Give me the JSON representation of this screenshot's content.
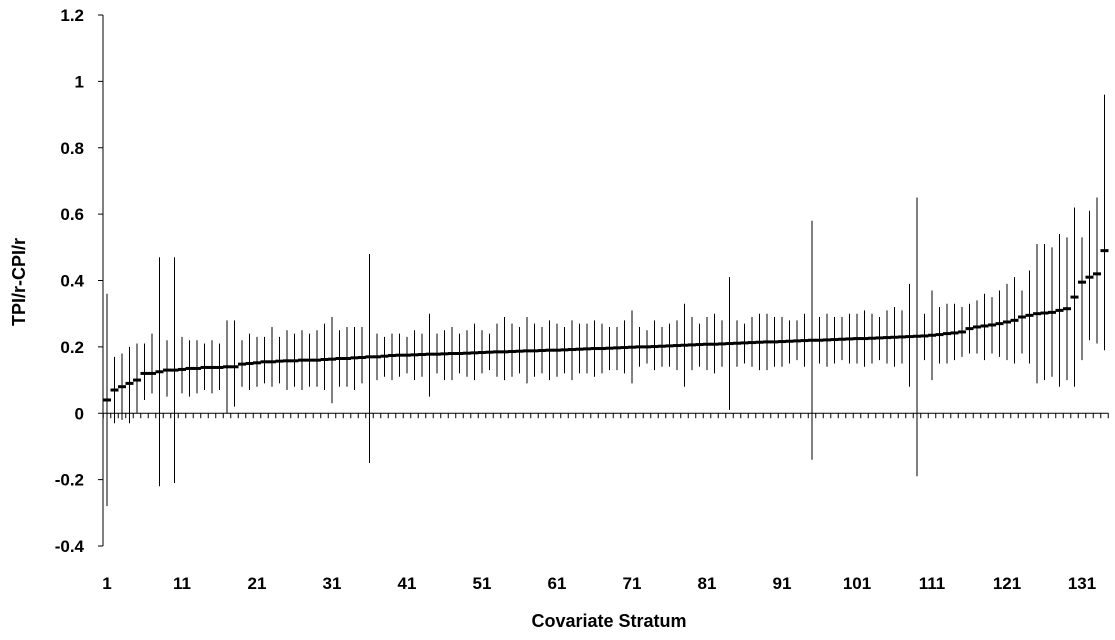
{
  "chart_data": {
    "type": "scatter",
    "title": "",
    "xlabel": "Covariate Stratum",
    "ylabel": "TPI/r-CPI/r",
    "ylim": [
      -0.4,
      1.2
    ],
    "yticks": [
      "-0.4",
      "-0.2",
      "0",
      "0.2",
      "0.4",
      "0.6",
      "0.8",
      "1",
      "1.2"
    ],
    "xlim": [
      1,
      134
    ],
    "xticks": [
      "1",
      "11",
      "21",
      "31",
      "41",
      "51",
      "61",
      "71",
      "81",
      "91",
      "101",
      "111",
      "121",
      "131"
    ],
    "grid": false,
    "legend": "none",
    "series": [
      {
        "estimate": [
          0.04,
          0.07,
          0.08,
          0.09,
          0.1,
          0.12,
          0.12,
          0.125,
          0.13,
          0.13,
          0.132,
          0.135,
          0.135,
          0.138,
          0.138,
          0.138,
          0.14,
          0.14,
          0.148,
          0.15,
          0.152,
          0.155,
          0.155,
          0.157,
          0.158,
          0.158,
          0.16,
          0.16,
          0.16,
          0.162,
          0.163,
          0.165,
          0.165,
          0.167,
          0.168,
          0.17,
          0.17,
          0.172,
          0.174,
          0.175,
          0.175,
          0.176,
          0.177,
          0.178,
          0.178,
          0.179,
          0.18,
          0.18,
          0.181,
          0.182,
          0.183,
          0.184,
          0.185,
          0.185,
          0.186,
          0.187,
          0.188,
          0.188,
          0.189,
          0.19,
          0.19,
          0.191,
          0.192,
          0.193,
          0.194,
          0.195,
          0.195,
          0.196,
          0.197,
          0.198,
          0.199,
          0.2,
          0.2,
          0.201,
          0.202,
          0.203,
          0.204,
          0.205,
          0.206,
          0.207,
          0.208,
          0.208,
          0.209,
          0.21,
          0.211,
          0.212,
          0.213,
          0.214,
          0.215,
          0.215,
          0.216,
          0.217,
          0.218,
          0.219,
          0.22,
          0.22,
          0.221,
          0.222,
          0.223,
          0.224,
          0.225,
          0.225,
          0.226,
          0.227,
          0.228,
          0.229,
          0.23,
          0.231,
          0.232,
          0.233,
          0.235,
          0.237,
          0.24,
          0.242,
          0.245,
          0.255,
          0.26,
          0.263,
          0.266,
          0.27,
          0.275,
          0.28,
          0.29,
          0.295,
          0.3,
          0.302,
          0.304,
          0.31,
          0.315,
          0.35,
          0.395,
          0.41,
          0.42,
          0.49
        ],
        "lower": [
          -0.28,
          -0.03,
          -0.02,
          -0.03,
          0.0,
          0.04,
          0.06,
          -0.22,
          0.05,
          -0.21,
          0.06,
          0.05,
          0.06,
          0.07,
          0.06,
          0.07,
          0.0,
          0.02,
          0.08,
          0.07,
          0.08,
          0.09,
          0.08,
          0.09,
          0.07,
          0.08,
          0.07,
          0.08,
          0.08,
          0.07,
          0.03,
          0.08,
          0.08,
          0.07,
          0.09,
          -0.15,
          0.1,
          0.11,
          0.1,
          0.11,
          0.12,
          0.1,
          0.11,
          0.05,
          0.12,
          0.1,
          0.1,
          0.12,
          0.11,
          0.1,
          0.12,
          0.13,
          0.11,
          0.1,
          0.11,
          0.12,
          0.09,
          0.11,
          0.12,
          0.1,
          0.11,
          0.12,
          0.1,
          0.12,
          0.12,
          0.11,
          0.12,
          0.13,
          0.13,
          0.12,
          0.09,
          0.14,
          0.15,
          0.13,
          0.14,
          0.14,
          0.13,
          0.08,
          0.13,
          0.14,
          0.13,
          0.12,
          0.14,
          0.01,
          0.14,
          0.15,
          0.14,
          0.13,
          0.13,
          0.14,
          0.14,
          0.15,
          0.16,
          0.14,
          -0.14,
          0.15,
          0.14,
          0.15,
          0.16,
          0.15,
          0.15,
          0.14,
          0.15,
          0.16,
          0.15,
          0.14,
          0.15,
          0.08,
          -0.19,
          0.16,
          0.1,
          0.15,
          0.15,
          0.16,
          0.17,
          0.18,
          0.18,
          0.16,
          0.18,
          0.17,
          0.16,
          0.15,
          0.18,
          0.15,
          0.09,
          0.1,
          0.11,
          0.08,
          0.1,
          0.08,
          0.16,
          0.22,
          0.21,
          0.19
        ],
        "upper": [
          0.36,
          0.17,
          0.18,
          0.2,
          0.21,
          0.21,
          0.24,
          0.47,
          0.22,
          0.47,
          0.23,
          0.22,
          0.22,
          0.21,
          0.22,
          0.21,
          0.28,
          0.28,
          0.22,
          0.24,
          0.23,
          0.23,
          0.26,
          0.23,
          0.25,
          0.24,
          0.25,
          0.24,
          0.25,
          0.27,
          0.29,
          0.25,
          0.26,
          0.26,
          0.26,
          0.48,
          0.24,
          0.23,
          0.24,
          0.24,
          0.23,
          0.25,
          0.24,
          0.3,
          0.24,
          0.25,
          0.26,
          0.24,
          0.25,
          0.27,
          0.25,
          0.24,
          0.27,
          0.29,
          0.27,
          0.26,
          0.29,
          0.27,
          0.26,
          0.28,
          0.27,
          0.26,
          0.28,
          0.27,
          0.27,
          0.28,
          0.27,
          0.26,
          0.26,
          0.28,
          0.31,
          0.26,
          0.25,
          0.28,
          0.26,
          0.27,
          0.28,
          0.33,
          0.29,
          0.27,
          0.29,
          0.3,
          0.28,
          0.41,
          0.28,
          0.27,
          0.29,
          0.3,
          0.3,
          0.29,
          0.29,
          0.28,
          0.28,
          0.3,
          0.58,
          0.29,
          0.3,
          0.29,
          0.29,
          0.3,
          0.3,
          0.31,
          0.3,
          0.29,
          0.31,
          0.32,
          0.31,
          0.39,
          0.65,
          0.3,
          0.37,
          0.32,
          0.33,
          0.33,
          0.32,
          0.33,
          0.34,
          0.36,
          0.35,
          0.37,
          0.39,
          0.41,
          0.37,
          0.43,
          0.51,
          0.51,
          0.5,
          0.54,
          0.53,
          0.62,
          0.53,
          0.61,
          0.65,
          0.96
        ]
      }
    ]
  }
}
